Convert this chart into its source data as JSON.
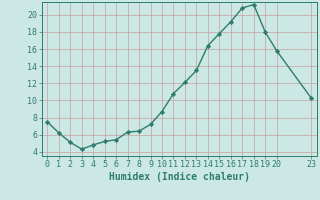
{
  "x": [
    0,
    1,
    2,
    3,
    4,
    5,
    6,
    7,
    8,
    9,
    10,
    11,
    12,
    13,
    14,
    15,
    16,
    17,
    18,
    19,
    20,
    23
  ],
  "y": [
    7.5,
    6.2,
    5.1,
    4.3,
    4.8,
    5.2,
    5.4,
    6.3,
    6.4,
    7.2,
    8.7,
    10.8,
    12.1,
    13.5,
    16.4,
    17.8,
    19.2,
    20.8,
    21.2,
    18.0,
    15.8,
    10.3
  ],
  "line_color": "#2e7d6e",
  "marker": "D",
  "marker_size": 2.2,
  "bg_color": "#cce8e4",
  "grid_color": "#c8a0a0",
  "axis_bg": "#cce8e4",
  "xlabel": "Humidex (Indice chaleur)",
  "ylim": [
    3.5,
    21.5
  ],
  "xlim": [
    -0.5,
    23.5
  ],
  "yticks": [
    4,
    6,
    8,
    10,
    12,
    14,
    16,
    18,
    20
  ],
  "xticks": [
    0,
    1,
    2,
    3,
    4,
    5,
    6,
    7,
    8,
    9,
    10,
    11,
    12,
    13,
    14,
    15,
    16,
    17,
    18,
    19,
    20,
    23
  ],
  "xtick_labels": [
    "0",
    "1",
    "2",
    "3",
    "4",
    "5",
    "6",
    "7",
    "8",
    "9",
    "10",
    "11",
    "12",
    "13",
    "14",
    "15",
    "16",
    "17",
    "18",
    "19",
    "20",
    "23"
  ],
  "line_width": 1.0,
  "xlabel_fontsize": 7,
  "tick_fontsize": 6,
  "label_color": "#2e7d6e"
}
